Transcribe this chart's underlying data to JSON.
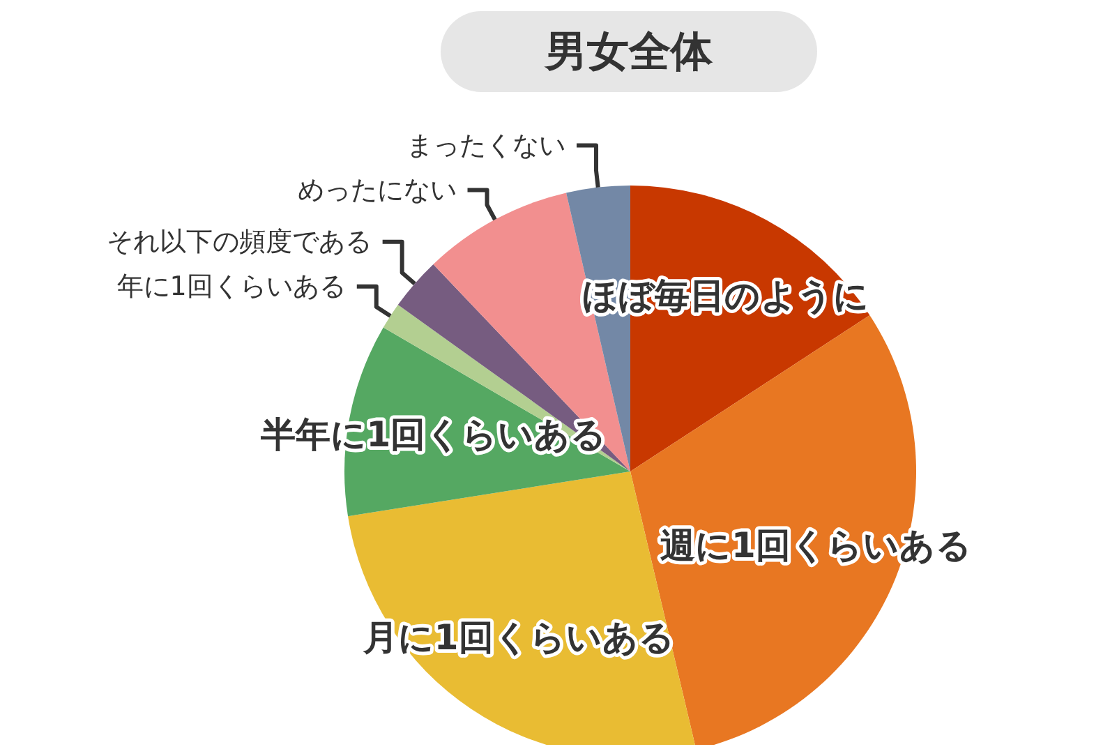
{
  "chart_data": {
    "type": "pie",
    "title": "男女全体",
    "categories": [
      "ほぼ毎日のように",
      "週に1回くらいある",
      "月に1回くらいある",
      "半年に1回くらいある",
      "年に1回くらいある",
      "それ以下の頻度である",
      "めったにない",
      "まったくない"
    ],
    "values": [
      15.8,
      30.5,
      26.2,
      10.9,
      1.5,
      3.0,
      8.5,
      3.6
    ],
    "colors": [
      "#c83800",
      "#e87722",
      "#e9bc33",
      "#55a862",
      "#b3cf91",
      "#765c80",
      "#f28f8f",
      "#7388a6"
    ]
  }
}
